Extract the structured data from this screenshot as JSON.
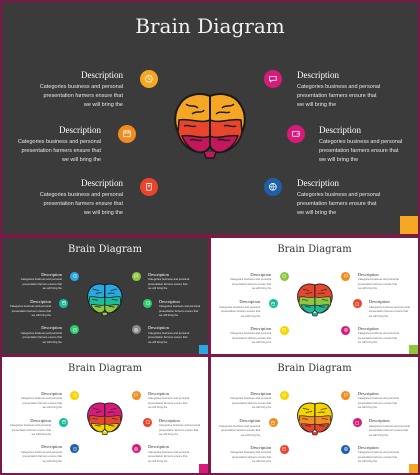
{
  "title": "Brain Diagram",
  "items": [
    {
      "heading": "Description",
      "body_lines": [
        "Categories business and personal",
        "presentation farmers ensure that",
        "we will bring the"
      ]
    },
    {
      "heading": "Description",
      "body_lines": [
        "Categories business and personal",
        "presentation farmers ensure that",
        "we will bring the"
      ]
    },
    {
      "heading": "Description",
      "body_lines": [
        "Categories business and personal",
        "presentation farmers ensure that",
        "we will bring the"
      ]
    },
    {
      "heading": "Description",
      "body_lines": [
        "Categories business and personal",
        "presentation farmers ensure that",
        "we will bring the"
      ]
    },
    {
      "heading": "Description",
      "body_lines": [
        "Categories business and personal",
        "presentation farmers ensure that",
        "we will bring the"
      ]
    },
    {
      "heading": "Description",
      "body_lines": [
        "Categories business and personal",
        "presentation farmers ensure that",
        "we will bring the"
      ]
    }
  ],
  "icons": [
    "clock-icon",
    "calendar-icon",
    "badge-icon",
    "chat-icon",
    "wallet-icon",
    "globe-icon"
  ],
  "slides": [
    {
      "theme": "dark",
      "circles": [
        "#f5a623",
        "#f28c1e",
        "#e8452c",
        "#d81b7a",
        "#d81b7a",
        "#1e5fa8"
      ],
      "brain": [
        "#f5a623",
        "#e8452c",
        "#c2185b"
      ],
      "corner": "#f5a623"
    },
    {
      "theme": "dark",
      "circles": [
        "#29a9e1",
        "#1abc9c",
        "#2ecc71",
        "#8dc63f",
        "#2ecc71",
        "#8a8a8a"
      ],
      "brain": [
        "#29a9e1",
        "#1abc9c",
        "#8dc63f"
      ],
      "corner": "#29a9e1"
    },
    {
      "theme": "light",
      "circles": [
        "#8dc63f",
        "#1abc9c",
        "#f5d400",
        "#f28c1e",
        "#e8452c",
        "#d81b7a"
      ],
      "brain": [
        "#e8452c",
        "#8dc63f",
        "#1abc9c"
      ],
      "corner": "#8dc63f"
    },
    {
      "theme": "light",
      "circles": [
        "#f5d400",
        "#1abc9c",
        "#1e5fa8",
        "#f28c1e",
        "#e8452c",
        "#d81b7a"
      ],
      "brain": [
        "#d81b7a",
        "#e8452c",
        "#f5d400"
      ],
      "corner": "#d81b7a"
    },
    {
      "theme": "light",
      "circles": [
        "#f5d400",
        "#f28c1e",
        "#e8452c",
        "#f28c1e",
        "#d81b7a",
        "#1e5fa8"
      ],
      "brain": [
        "#f5d400",
        "#f28c1e",
        "#e8452c"
      ],
      "corner": "#f5a623"
    }
  ]
}
